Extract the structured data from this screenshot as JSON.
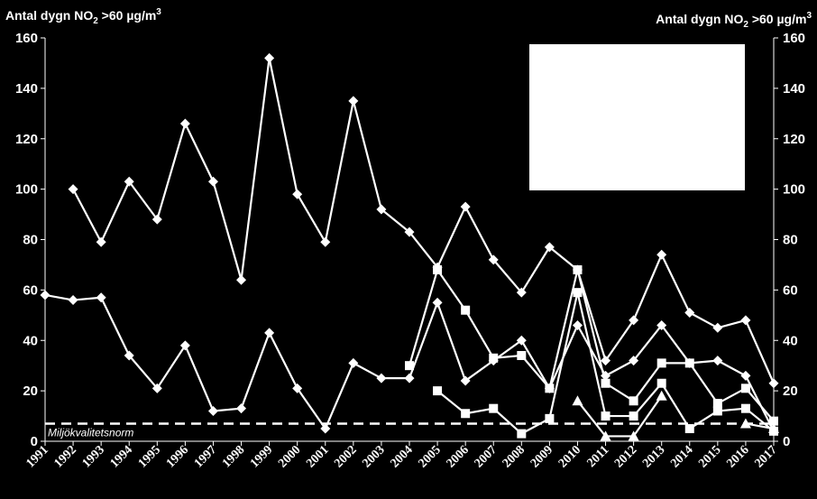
{
  "chart_data": {
    "type": "line",
    "ylabel_left": "Antal dygn NO",
    "ylabel_right": "Antal dygn NO",
    "ylabel_sub": "2",
    "ylabel_tail": " >60 µg/m",
    "ylabel_sup": "3",
    "ylim": [
      0,
      160
    ],
    "yticks": [
      0,
      20,
      40,
      60,
      80,
      100,
      120,
      140,
      160
    ],
    "categories": [
      "1991",
      "1992",
      "1993",
      "1994",
      "1995",
      "1996",
      "1997",
      "1998",
      "1999",
      "2000",
      "2001",
      "2002",
      "2003",
      "2004",
      "2005",
      "2006",
      "2007",
      "2008",
      "2009",
      "2010",
      "2011",
      "2012",
      "2013",
      "2014",
      "2015",
      "2016",
      "2017"
    ],
    "grid": false,
    "legend": "white box top-right (empty)",
    "colors": {
      "background": "#000000",
      "foreground": "#ffffff"
    },
    "reference_line": {
      "value": 7,
      "label": "Miljökvalitetsnorm",
      "style": "dashed"
    },
    "series": [
      {
        "marker": "diamond",
        "values": [
          null,
          100,
          79,
          103,
          88,
          126,
          103,
          64,
          152,
          98,
          79,
          135,
          92,
          83,
          69,
          93,
          72,
          59,
          77,
          68,
          32,
          48,
          74,
          51,
          45,
          48,
          23
        ]
      },
      {
        "marker": "diamond",
        "values": [
          58,
          56,
          57,
          34,
          21,
          38,
          12,
          13,
          43,
          21,
          5,
          31,
          25,
          25,
          55,
          24,
          32,
          40,
          21,
          46,
          26,
          32,
          46,
          31,
          32,
          26,
          4
        ]
      },
      {
        "marker": "square",
        "values": [
          null,
          null,
          null,
          null,
          null,
          null,
          null,
          null,
          null,
          null,
          null,
          null,
          null,
          30,
          68,
          52,
          33,
          34,
          21,
          68,
          23,
          16,
          31,
          31,
          15,
          21,
          8
        ]
      },
      {
        "marker": "square",
        "values": [
          null,
          null,
          null,
          null,
          null,
          null,
          null,
          null,
          null,
          null,
          null,
          null,
          null,
          null,
          20,
          11,
          13,
          3,
          9,
          59,
          10,
          10,
          23,
          5,
          12,
          13,
          4
        ]
      },
      {
        "marker": "triangle",
        "values": [
          null,
          null,
          null,
          null,
          null,
          null,
          null,
          null,
          null,
          null,
          null,
          null,
          null,
          null,
          null,
          null,
          null,
          null,
          null,
          16,
          2,
          2,
          18,
          null,
          null,
          7,
          5
        ]
      }
    ]
  }
}
